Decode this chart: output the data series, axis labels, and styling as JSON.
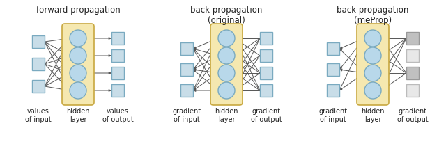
{
  "title_fp": "forward propagation",
  "title_bp_orig": "back propagation\n(original)",
  "title_bp_me": "back propagation\n(meProp)",
  "label_fp_left": "values\nof input",
  "label_fp_mid": "hidden\nlayer",
  "label_fp_right": "values\nof output",
  "label_bp_left": "gradient\nof input",
  "label_bp_mid": "hidden\nlayer",
  "label_bp_right": "gradient\nof output",
  "bg_color": "#ffffff",
  "node_circle_fill": "#b8d8ea",
  "node_circle_edge": "#7aaac0",
  "node_square_fill_blue": "#c8dde8",
  "node_square_fill_gray_dark": "#c0c0c0",
  "node_square_fill_gray_light": "#e8e8e8",
  "node_square_edge_blue": "#7aaac0",
  "node_square_edge_gray_dark": "#999999",
  "node_square_edge_gray_light": "#bbbbbb",
  "hidden_bg_fill": "#f5e8b0",
  "hidden_bg_edge": "#c8a840",
  "line_color": "#555555",
  "text_color": "#222222",
  "title_fontsize": 8.5,
  "label_fontsize": 7.0
}
